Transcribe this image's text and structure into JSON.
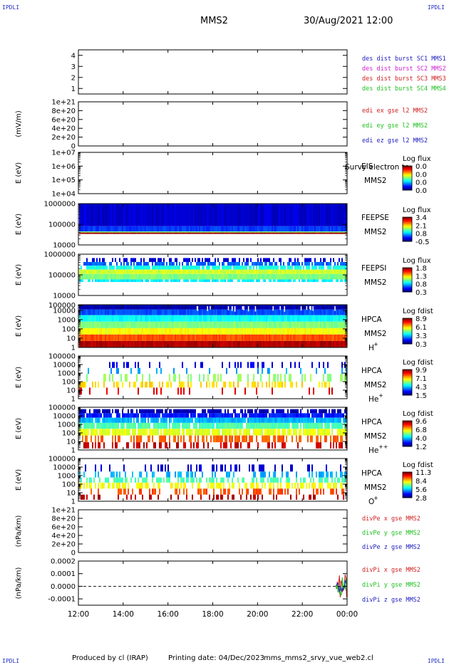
{
  "header": {
    "spacecraft": "MMS2",
    "datetime": "30/Aug/2021 12:00",
    "corner_mark": "IPDLI"
  },
  "footer": {
    "produced_by": "Produced by cl (IRAP)",
    "printing_date": "Printing date: 04/Dec/2023",
    "filename": "mms_mms2_srvy_vue_web2.cl"
  },
  "chart_data": {
    "type": "multi-panel time series / spectrogram",
    "x": {
      "tick_labels": [
        "12:00",
        "14:00",
        "16:00",
        "18:00",
        "20:00",
        "22:00",
        "00:00"
      ],
      "range_hours": [
        12,
        24
      ]
    },
    "panels": [
      {
        "id": "burst",
        "type": "line",
        "yticks": [
          "1",
          "2",
          "3",
          "4"
        ],
        "ylim": [
          0.5,
          4.5
        ],
        "ylabel": "",
        "legend": [
          {
            "text": "des dist burst SC1 MMS1",
            "color": "#2020c0"
          },
          {
            "text": "des dist burst SC2 MMS2",
            "color": "#d020d0"
          },
          {
            "text": "des dist burst SC3 MMS3",
            "color": "#d02020"
          },
          {
            "text": "des dist burst SC4 MMS4",
            "color": "#20c020"
          }
        ]
      },
      {
        "id": "edi",
        "type": "line",
        "ylabel": "(mV/m)",
        "yticks": [
          "0",
          "2e+20",
          "4e+20",
          "6e+20",
          "8e+20",
          "1e+21"
        ],
        "ylim": [
          0,
          1e+21
        ],
        "zero_line": true,
        "legend": [
          {
            "text": "edi ex gse l2 MMS2",
            "color": "#d02020"
          },
          {
            "text": "edi ey gse l2 MMS2",
            "color": "#20c020"
          },
          {
            "text": "edi ez gse l2 MMS2",
            "color": "#2020c0"
          }
        ]
      },
      {
        "id": "eis",
        "type": "heatmap",
        "ylabel": "E (eV)",
        "yticks": [
          "1e+04",
          "1e+05",
          "1e+06",
          "1e+07"
        ],
        "ylim": [
          10000,
          10000000
        ],
        "instrument": [
          "EIS",
          "MMS2"
        ],
        "overlay_note": "Survy electron to",
        "colorbar": {
          "title": "Log flux",
          "ticks": [
            "0.0",
            "0.0",
            "0.0",
            "0.0"
          ]
        },
        "coverage": []
      },
      {
        "id": "feepse",
        "type": "heatmap",
        "ylabel": "E (eV)",
        "yticks": [
          "10000",
          "100000",
          "1000000"
        ],
        "ylim": [
          10000,
          1000000
        ],
        "instrument": [
          "FEEPSE",
          "MMS2"
        ],
        "colorbar": {
          "title": "Log flux",
          "ticks": [
            "3.4",
            "2.1",
            "0.8",
            "-0.5"
          ]
        },
        "coverage": [
          {
            "e_from": 1000000,
            "e_to": 80000,
            "level": 0.08,
            "density": 1.0
          },
          {
            "e_from": 80000,
            "e_to": 45000,
            "level": 0.18,
            "density": 1.0
          },
          {
            "e_from": 45000,
            "e_to": 40000,
            "level": 0.5,
            "density": 1.0
          },
          {
            "e_from": 40000,
            "e_to": 34000,
            "level": 0.97,
            "density": 1.0
          }
        ]
      },
      {
        "id": "feepsi",
        "type": "heatmap",
        "ylabel": "E (eV)",
        "yticks": [
          "10000",
          "100000",
          "1000000"
        ],
        "ylim": [
          10000,
          1000000
        ],
        "instrument": [
          "FEEPSI",
          "MMS2"
        ],
        "colorbar": {
          "title": "Log flux",
          "ticks": [
            "1.8",
            "1.3",
            "0.8",
            "0.3"
          ]
        },
        "coverage": [
          {
            "e_from": 650000,
            "e_to": 420000,
            "level": 0.08,
            "density": 0.45
          },
          {
            "e_from": 420000,
            "e_to": 280000,
            "level": 0.22,
            "density": 0.7
          },
          {
            "e_from": 280000,
            "e_to": 180000,
            "level": 0.4,
            "density": 0.85
          },
          {
            "e_from": 180000,
            "e_to": 110000,
            "level": 0.58,
            "density": 1.0
          },
          {
            "e_from": 110000,
            "e_to": 60000,
            "level": 0.5,
            "density": 1.0
          },
          {
            "e_from": 60000,
            "e_to": 45000,
            "level": 0.36,
            "density": 0.8
          }
        ]
      },
      {
        "id": "hpca_h",
        "type": "heatmap",
        "ylabel": "E (eV)",
        "yticks": [
          "1",
          "10",
          "100",
          "1000",
          "10000",
          "100000"
        ],
        "ylim": [
          1,
          40000
        ],
        "instrument": [
          "HPCA",
          "MMS2"
        ],
        "species": "H",
        "charge": "+",
        "colorbar": {
          "title": "Log fdist",
          "ticks": [
            "8.9",
            "6.1",
            "3.3",
            "0.3"
          ]
        },
        "coverage": [
          {
            "e_from": 40000,
            "e_to": 12000,
            "level": 0.05,
            "density": 1.0
          },
          {
            "e_from": 12000,
            "e_to": 3000,
            "level": 0.2,
            "density": 1.0
          },
          {
            "e_from": 3000,
            "e_to": 600,
            "level": 0.38,
            "density": 1.0
          },
          {
            "e_from": 600,
            "e_to": 120,
            "level": 0.5,
            "density": 1.0
          },
          {
            "e_from": 120,
            "e_to": 25,
            "level": 0.62,
            "density": 1.0
          },
          {
            "e_from": 25,
            "e_to": 5,
            "level": 0.8,
            "density": 1.0
          },
          {
            "e_from": 5,
            "e_to": 1,
            "level": 0.95,
            "density": 1.0
          }
        ]
      },
      {
        "id": "hpca_he1",
        "type": "heatmap",
        "ylabel": "E (eV)",
        "yticks": [
          "1",
          "10",
          "100",
          "1000",
          "10000",
          "100000"
        ],
        "ylim": [
          1,
          100000
        ],
        "instrument": [
          "HPCA",
          "MMS2"
        ],
        "species": "He",
        "charge": "+",
        "colorbar": {
          "title": "Log fdist",
          "ticks": [
            "9.9",
            "7.1",
            "4.3",
            "1.5"
          ]
        },
        "coverage": [
          {
            "e_from": 20000,
            "e_to": 4000,
            "level": 0.1,
            "density": 0.18
          },
          {
            "e_from": 4000,
            "e_to": 800,
            "level": 0.28,
            "density": 0.12
          },
          {
            "e_from": 800,
            "e_to": 100,
            "level": 0.52,
            "density": 0.3
          },
          {
            "e_from": 100,
            "e_to": 20,
            "level": 0.66,
            "density": 0.35
          },
          {
            "e_from": 20,
            "e_to": 3,
            "level": 0.9,
            "density": 0.12
          }
        ]
      },
      {
        "id": "hpca_he2",
        "type": "heatmap",
        "ylabel": "E (eV)",
        "yticks": [
          "1",
          "10",
          "100",
          "1000",
          "10000",
          "100000"
        ],
        "ylim": [
          1,
          100000
        ],
        "instrument": [
          "HPCA",
          "MMS2"
        ],
        "species": "He",
        "charge": "++",
        "colorbar": {
          "title": "Log fdist",
          "ticks": [
            "9.6",
            "6.8",
            "4.0",
            "1.2"
          ]
        },
        "coverage": [
          {
            "e_from": 60000,
            "e_to": 20000,
            "level": 0.05,
            "density": 0.75
          },
          {
            "e_from": 20000,
            "e_to": 6000,
            "level": 0.15,
            "density": 0.9
          },
          {
            "e_from": 6000,
            "e_to": 1500,
            "level": 0.3,
            "density": 0.9
          },
          {
            "e_from": 1500,
            "e_to": 300,
            "level": 0.45,
            "density": 0.9
          },
          {
            "e_from": 300,
            "e_to": 50,
            "level": 0.6,
            "density": 0.85
          },
          {
            "e_from": 50,
            "e_to": 8,
            "level": 0.78,
            "density": 0.55
          },
          {
            "e_from": 8,
            "e_to": 1.5,
            "level": 0.93,
            "density": 0.35
          }
        ]
      },
      {
        "id": "hpca_o",
        "type": "heatmap",
        "ylabel": "E (eV)",
        "yticks": [
          "1",
          "10",
          "100",
          "1000",
          "10000",
          "100000"
        ],
        "ylim": [
          1,
          100000
        ],
        "instrument": [
          "HPCA",
          "MMS2"
        ],
        "species": "O",
        "charge": "+",
        "colorbar": {
          "title": "Log fdist",
          "ticks": [
            "11.3",
            "8.4",
            "5.6",
            "2.8"
          ]
        },
        "coverage": [
          {
            "e_from": 20000,
            "e_to": 3000,
            "level": 0.08,
            "density": 0.22
          },
          {
            "e_from": 3000,
            "e_to": 600,
            "level": 0.3,
            "density": 0.4
          },
          {
            "e_from": 600,
            "e_to": 150,
            "level": 0.45,
            "density": 0.55
          },
          {
            "e_from": 150,
            "e_to": 30,
            "level": 0.62,
            "density": 0.5
          },
          {
            "e_from": 30,
            "e_to": 6,
            "level": 0.8,
            "density": 0.35
          },
          {
            "e_from": 6,
            "e_to": 1.5,
            "level": 0.95,
            "density": 0.25
          }
        ]
      },
      {
        "id": "divpe",
        "type": "line",
        "ylabel": "(nPa/km)",
        "yticks": [
          "0",
          "2e+20",
          "4e+20",
          "6e+20",
          "8e+20",
          "1e+21"
        ],
        "ylim": [
          0,
          1e+21
        ],
        "zero_line": true,
        "legend": [
          {
            "text": "divPe x gse MMS2",
            "color": "#d02020"
          },
          {
            "text": "divPe y gse MMS2",
            "color": "#20c020"
          },
          {
            "text": "divPe z gse MMS2",
            "color": "#2020c0"
          }
        ]
      },
      {
        "id": "divpi",
        "type": "line",
        "ylabel": "(nPa/km)",
        "yticks": [
          "-0.0001",
          "0.0000",
          "0.0001",
          "0.0002"
        ],
        "ylim": [
          -0.00015,
          0.0002
        ],
        "zero_line": true,
        "legend": [
          {
            "text": "divPi x gse MMS2",
            "color": "#d02020"
          },
          {
            "text": "divPi y gse MMS2",
            "color": "#20c020"
          },
          {
            "text": "divPi z gse MMS2",
            "color": "#2020c0"
          }
        ],
        "series": [
          {
            "name": "divPi x gse MMS2",
            "color": "#d02020",
            "amplitude": 0.00012,
            "from_hour": 23.5
          },
          {
            "name": "divPi y gse MMS2",
            "color": "#20c020",
            "amplitude": 8e-05,
            "from_hour": 23.5
          },
          {
            "name": "divPi z gse MMS2",
            "color": "#2020c0",
            "amplitude": 5e-05,
            "from_hour": 23.5
          }
        ]
      }
    ]
  }
}
